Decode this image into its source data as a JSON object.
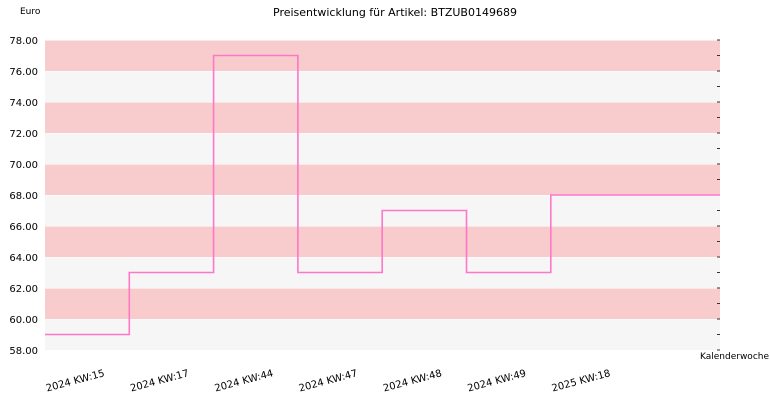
{
  "chart_data": {
    "type": "line",
    "step": true,
    "title": "Preisentwicklung für Artikel: BTZUB0149689",
    "ylabel": "Euro",
    "xlabel": "Kalenderwoche",
    "categories": [
      "2024 KW:15",
      "2024 KW:17",
      "2024 KW:44",
      "2024 KW:47",
      "2024 KW:48",
      "2024 KW:49",
      "2025 KW:18"
    ],
    "series": [
      {
        "values": [
          59.0,
          63.0,
          77.0,
          63.0,
          67.0,
          63.0,
          68.0
        ]
      }
    ],
    "ylim": [
      58.0,
      78.0
    ],
    "yticks": [
      "58.00",
      "60.00",
      "62.00",
      "64.00",
      "66.00",
      "68.00",
      "70.00",
      "72.00",
      "74.00",
      "76.00",
      "78.00"
    ],
    "band_colors": [
      "#f6f6f6",
      "#f8cccc"
    ],
    "line_color": "#ff77c8",
    "grid": true
  }
}
